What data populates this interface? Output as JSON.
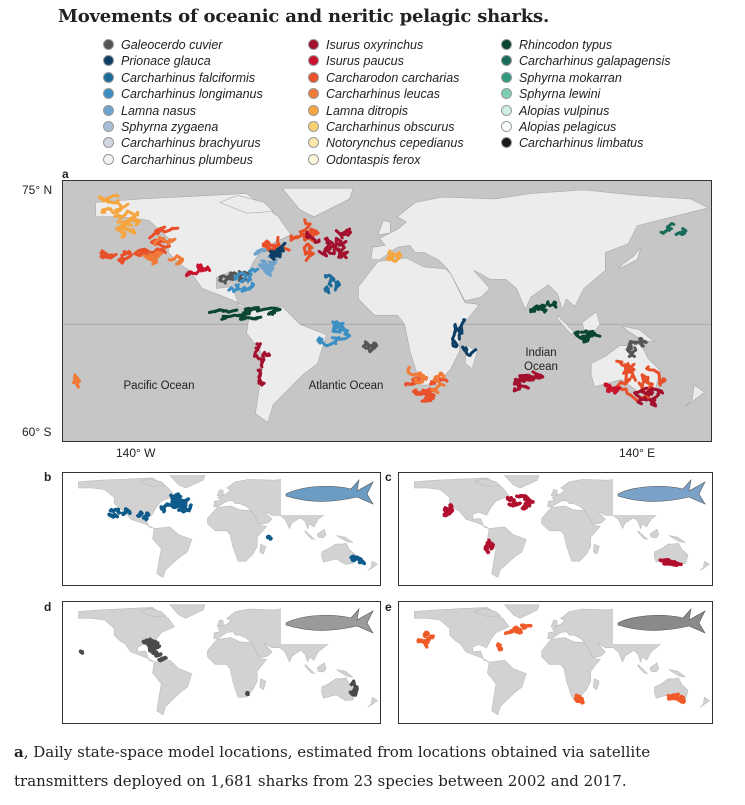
{
  "header": {
    "title": "Movements of oceanic and neritic pelagic sharks."
  },
  "legend": [
    {
      "name": "Galeocerdo cuvier",
      "color": "#555555"
    },
    {
      "name": "Prionace glauca",
      "color": "#0d3f66"
    },
    {
      "name": "Carcharhinus falciformis",
      "color": "#1a6a9a"
    },
    {
      "name": "Carcharhinus longimanus",
      "color": "#3b8fc2"
    },
    {
      "name": "Lamna nasus",
      "color": "#6fa3cc"
    },
    {
      "name": "Sphyrna zygaena",
      "color": "#a7bfd8"
    },
    {
      "name": "Carcharhinus brachyurus",
      "color": "#d3d6e3"
    },
    {
      "name": "Carcharhinus plumbeus",
      "color": "#f2f2f2"
    },
    {
      "name": "Isurus oxyrinchus",
      "color": "#a3102d"
    },
    {
      "name": "Isurus paucus",
      "color": "#c8122e"
    },
    {
      "name": "Carcharodon carcharias",
      "color": "#e8502a"
    },
    {
      "name": "Carcharhinus leucas",
      "color": "#f07a38"
    },
    {
      "name": "Lamna ditropis",
      "color": "#f5a640"
    },
    {
      "name": "Carcharhinus obscurus",
      "color": "#f8d270"
    },
    {
      "name": "Notorynchus cepedianus",
      "color": "#fbe9a8"
    },
    {
      "name": "Odontaspis ferox",
      "color": "#fdf8dc"
    },
    {
      "name": "Rhincodon typus",
      "color": "#0a4630"
    },
    {
      "name": "Carcharhinus galapagensis",
      "color": "#176b58"
    },
    {
      "name": "Sphyrna mokarran",
      "color": "#2f9a7f"
    },
    {
      "name": "Sphyrna lewini",
      "color": "#7ecdb4"
    },
    {
      "name": "Alopias vulpinus",
      "color": "#cdeee2"
    },
    {
      "name": "Alopias pelagicus",
      "color": "#f8fcfa"
    },
    {
      "name": "Carcharhinus limbatus",
      "color": "#1a1a1a"
    }
  ],
  "panels": [
    {
      "label": "a",
      "lat_labels": [
        "75° N",
        "60° S"
      ],
      "lon_labels": [
        "140° W",
        "140° E"
      ],
      "ocean_labels": [
        "Pacific Ocean",
        "Atlantic Ocean",
        "Indian Ocean"
      ]
    },
    {
      "label": "b",
      "color": "#0e5a8a"
    },
    {
      "label": "c",
      "color": "#b0102e"
    },
    {
      "label": "d",
      "color": "#4a4a4a"
    },
    {
      "label": "e",
      "color": "#ef5a28"
    }
  ],
  "caption": {
    "label": "a",
    "text": ", Daily state-space model locations, estimated from locations obtained via satellite transmitters deployed on 1,681 sharks from 23 species between 2002 and 2017."
  }
}
